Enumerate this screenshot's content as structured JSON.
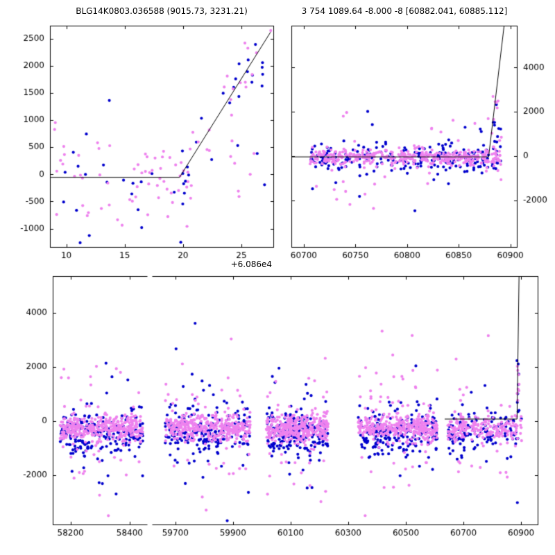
{
  "figure": {
    "title_left": "BLG14K0803.036588 (9015.73, 3231.21)",
    "title_right": "3 754 1089.64 -8.000 -8 [60882.041, 60885.112]",
    "background": "#ffffff",
    "colors": {
      "violet": "#ee82ee",
      "blue": "#0000cd",
      "model_line": "#000000",
      "axes": "#000000",
      "text": "#000000"
    }
  },
  "chart_data": [
    {
      "id": "zoom",
      "type": "scatter",
      "description": "Zoom on recent epochs, x axis offset +6.086e4",
      "x_offset_label": "+6.086e4",
      "xlim": [
        8.6,
        27.8
      ],
      "ylim": [
        -1350,
        2740
      ],
      "xticks": [
        10,
        15,
        20,
        25
      ],
      "yticks": [
        -1000,
        -500,
        0,
        500,
        1000,
        1500,
        2000,
        2500
      ],
      "ylabel_side": "left",
      "grid": false,
      "legend": false,
      "model": [
        [
          8.6,
          -55
        ],
        [
          19.7,
          -55
        ],
        [
          27.5,
          2620
        ]
      ],
      "seed": 11,
      "n_points_approx": 130,
      "clusters": [
        {
          "x": [
            8.7,
            20.5
          ],
          "outlier_frac": 0.08,
          "outlier_sd": 900,
          "series": [
            {
              "color": "blue",
              "n": 26,
              "mean": -220,
              "sd": 470
            },
            {
              "color": "violet",
              "n": 58,
              "mean": -90,
              "sd": 380
            }
          ]
        },
        {
          "x": [
            20.2,
            27.6
          ],
          "follow_line": true,
          "series": [
            {
              "color": "blue",
              "n": 16,
              "sd": 360
            },
            {
              "color": "violet",
              "n": 20,
              "sd": 330
            }
          ]
        },
        {
          "x": [
            20.0,
            27.0
          ],
          "outlier_frac": 0.1,
          "outlier_sd": 800,
          "series": [
            {
              "color": "blue",
              "n": 8,
              "mean": -150,
              "sd": 400
            },
            {
              "color": "violet",
              "n": 10,
              "mean": -120,
              "sd": 400
            }
          ]
        }
      ]
    },
    {
      "id": "recent",
      "type": "scatter",
      "description": "Current season light curve with model spike at right edge",
      "xlim": [
        60688,
        60907
      ],
      "ylim": [
        -4150,
        5900
      ],
      "xticks": [
        60700,
        60750,
        60800,
        60850,
        60900
      ],
      "yticks": [
        -2000,
        0,
        2000,
        4000
      ],
      "ylabel_side": "right",
      "grid": false,
      "legend": false,
      "model": [
        [
          60688,
          -40
        ],
        [
          60879,
          -40
        ],
        [
          60894,
          5900
        ]
      ],
      "seed": 22,
      "n_points_approx": 690,
      "clusters": [
        {
          "x": [
            60706,
            60891
          ],
          "outlier_frac": 0.12,
          "outlier_sd": 1250,
          "series": [
            {
              "color": "blue",
              "n": 240,
              "mean": -150,
              "sd": 330
            },
            {
              "color": "violet",
              "n": 430,
              "mean": -60,
              "sd": 200
            }
          ]
        }
      ],
      "spikes": [
        {
          "n": 16,
          "x_mean": 60886,
          "x_sd": 2.2,
          "y": [
            150,
            2650
          ]
        }
      ]
    },
    {
      "id": "full",
      "type": "scatter",
      "description": "Full multi-season light curve, broken x axis (seasonal gap removed)",
      "x_axis": "broken",
      "xlim_segments": [
        {
          "xmin": 58140,
          "xmax": 58460,
          "f0": 0.0,
          "f1": 0.195
        },
        {
          "xmin": 59620,
          "xmax": 60960,
          "f0": 0.205,
          "f1": 1.0
        }
      ],
      "ylim": [
        -3850,
        5350
      ],
      "xticks": [
        58200,
        58400,
        59700,
        59900,
        60100,
        60300,
        60500,
        60700,
        60900
      ],
      "yticks": [
        -2000,
        0,
        2000,
        4000
      ],
      "ylabel_side": "left",
      "grid": false,
      "legend": false,
      "model": [
        [
          60635,
          70
        ],
        [
          60886,
          70
        ],
        [
          60893,
          5350
        ]
      ],
      "seed": 33,
      "n_points_approx": 2770,
      "clusters": [
        {
          "x": [
            58165,
            58445
          ],
          "outlier_frac": 0.15,
          "outlier_sd": 1350,
          "series": [
            {
              "color": "blue",
              "n": 215,
              "mean": -430,
              "sd": 430
            },
            {
              "color": "violet",
              "n": 380,
              "mean": -270,
              "sd": 250
            }
          ]
        },
        {
          "x": [
            59665,
            59960
          ],
          "outlier_frac": 0.15,
          "outlier_sd": 1350,
          "series": [
            {
              "color": "blue",
              "n": 215,
              "mean": -430,
              "sd": 430
            },
            {
              "color": "violet",
              "n": 380,
              "mean": -270,
              "sd": 250
            }
          ]
        },
        {
          "x": [
            60015,
            60230
          ],
          "outlier_frac": 0.15,
          "outlier_sd": 1350,
          "series": [
            {
              "color": "blue",
              "n": 210,
              "mean": -430,
              "sd": 430
            },
            {
              "color": "violet",
              "n": 370,
              "mean": -270,
              "sd": 250
            }
          ]
        },
        {
          "x": [
            60335,
            60610
          ],
          "outlier_frac": 0.15,
          "outlier_sd": 1350,
          "series": [
            {
              "color": "blue",
              "n": 215,
              "mean": -430,
              "sd": 430
            },
            {
              "color": "violet",
              "n": 380,
              "mean": -270,
              "sd": 250
            }
          ]
        },
        {
          "x": [
            60645,
            60902
          ],
          "outlier_frac": 0.12,
          "outlier_sd": 1150,
          "series": [
            {
              "color": "blue",
              "n": 135,
              "mean": -400,
              "sd": 400
            },
            {
              "color": "violet",
              "n": 225,
              "mean": -260,
              "sd": 240
            }
          ]
        }
      ],
      "spikes": [
        {
          "n": 14,
          "x_mean": 60888,
          "x_sd": 2.0,
          "y": [
            100,
            2400
          ]
        }
      ]
    }
  ]
}
